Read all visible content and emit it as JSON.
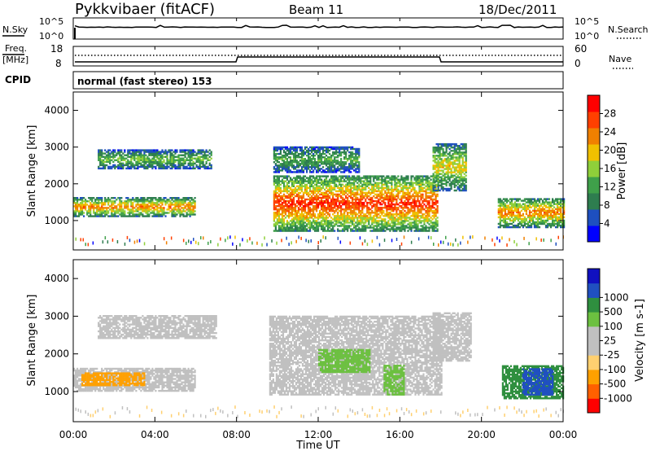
{
  "header": {
    "station": "Pykkvibaer (fitACF)",
    "beam": "Beam 11",
    "date": "18/Dec/2011"
  },
  "nsky_panel": {
    "left_label": "N.Sky",
    "left_ticks": [
      "10^5",
      "10^0"
    ],
    "right_ticks": [
      "10^5",
      "10^0"
    ],
    "right_label": "N.Search"
  },
  "freq_panel": {
    "left_label_1": "Freq.",
    "left_label_2": "[MHz]",
    "left_ticks": [
      "18",
      "8"
    ],
    "right_ticks": [
      "60",
      "0"
    ],
    "right_label": "Nave"
  },
  "cpid_panel": {
    "left_label": "CPID",
    "mode_text": "normal (fast stereo) 153"
  },
  "colors": {
    "power_scale": [
      "#0000ff",
      "#1e4fbf",
      "#2e7d4f",
      "#3fa04a",
      "#8fcf3a",
      "#f0c000",
      "#f08000",
      "#ff4000",
      "#ff0000"
    ],
    "velocity_scale": [
      "#ff0000",
      "#ff6000",
      "#ffa000",
      "#ffd070",
      "#c0c0c0",
      "#c0c0c0",
      "#6cc040",
      "#2f8f3f",
      "#2050c0",
      "#1010c0"
    ],
    "ground_scatter": "#c0c0c0"
  },
  "chart_data": [
    {
      "type": "heatmap",
      "name": "power",
      "ylabel": "Slant Range [km]",
      "yticks": [
        "1000",
        "2000",
        "3000",
        "4000"
      ],
      "ylim": [
        200,
        4500
      ],
      "xlim_hours": [
        0,
        24
      ],
      "colorbar_label": "Power [dB]",
      "colorbar_ticks": [
        "4",
        "8",
        "12",
        "16",
        "20",
        "24",
        "28"
      ],
      "colorbar_range": [
        0,
        32
      ],
      "regions": [
        {
          "t0": 0.0,
          "t1": 6.0,
          "r0": 1100,
          "r1": 1600,
          "level": 22
        },
        {
          "t0": 1.2,
          "t1": 6.8,
          "r0": 2400,
          "r1": 2900,
          "level": 14
        },
        {
          "t0": 9.8,
          "t1": 17.8,
          "r0": 700,
          "r1": 2200,
          "level": 26
        },
        {
          "t0": 9.8,
          "t1": 14.0,
          "r0": 2300,
          "r1": 3000,
          "level": 12
        },
        {
          "t0": 17.6,
          "t1": 19.2,
          "r0": 1800,
          "r1": 3100,
          "level": 18
        },
        {
          "t0": 20.8,
          "t1": 24.0,
          "r0": 800,
          "r1": 1600,
          "level": 22
        }
      ]
    },
    {
      "type": "heatmap",
      "name": "velocity",
      "ylabel": "Slant Range [km]",
      "yticks": [
        "1000",
        "2000",
        "3000",
        "4000"
      ],
      "ylim": [
        200,
        4500
      ],
      "xlim_hours": [
        0,
        24
      ],
      "xticks": [
        "00:00",
        "04:00",
        "08:00",
        "12:00",
        "16:00",
        "20:00",
        "00:00"
      ],
      "xlabel": "Time UT",
      "colorbar_label": "Velocity [m s-1]",
      "colorbar_ticks": [
        "-1000",
        "-500",
        "-100",
        "-25",
        "25",
        "100",
        "500",
        "1000"
      ],
      "regions": [
        {
          "t0": 0.0,
          "t1": 6.0,
          "r0": 1000,
          "r1": 1600,
          "kind": "ground"
        },
        {
          "t0": 0.4,
          "t1": 3.5,
          "r0": 1150,
          "r1": 1500,
          "kind": "neg100"
        },
        {
          "t0": 1.2,
          "t1": 7.0,
          "r0": 2400,
          "r1": 3000,
          "kind": "ground"
        },
        {
          "t0": 9.6,
          "t1": 18.0,
          "r0": 900,
          "r1": 3000,
          "kind": "ground"
        },
        {
          "t0": 12.0,
          "t1": 14.5,
          "r0": 1500,
          "r1": 2100,
          "kind": "pos100"
        },
        {
          "t0": 15.2,
          "t1": 16.2,
          "r0": 900,
          "r1": 1700,
          "kind": "pos100"
        },
        {
          "t0": 17.6,
          "t1": 19.5,
          "r0": 1800,
          "r1": 3100,
          "kind": "ground"
        },
        {
          "t0": 21.0,
          "t1": 24.0,
          "r0": 800,
          "r1": 1700,
          "kind": "pos500"
        },
        {
          "t0": 22.0,
          "t1": 23.5,
          "r0": 900,
          "r1": 1600,
          "kind": "pos1000"
        }
      ]
    }
  ]
}
